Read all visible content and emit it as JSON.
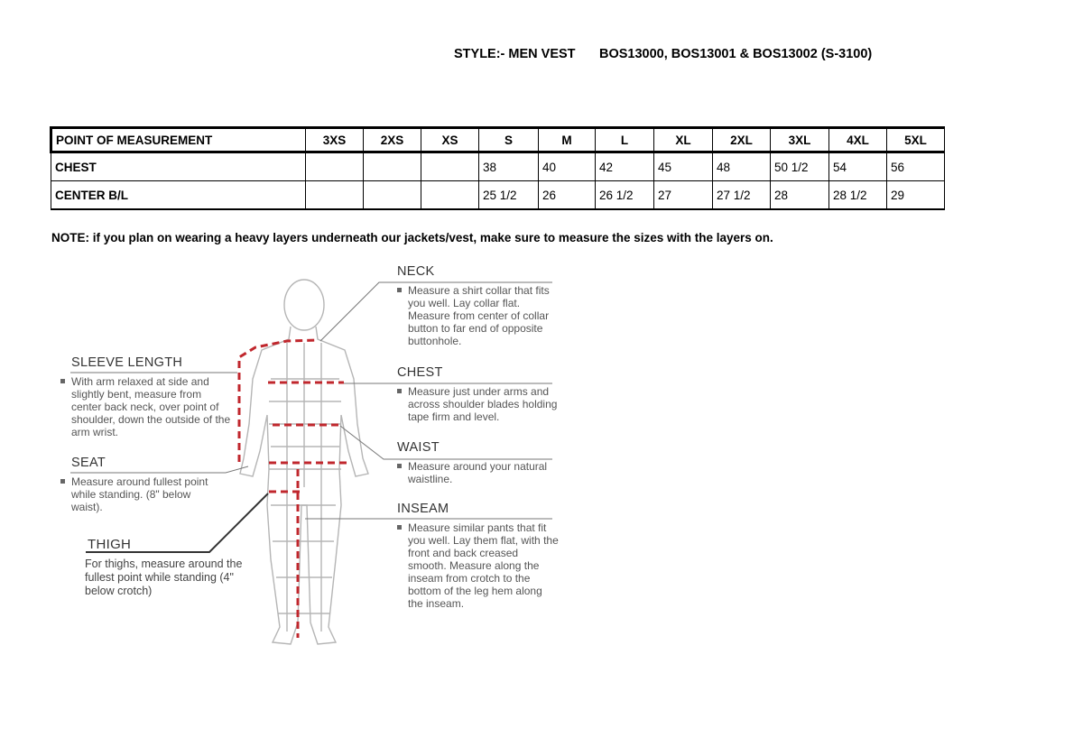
{
  "header": {
    "style": "STYLE:- MEN VEST",
    "codes": "BOS13000, BOS13001 & BOS13002 (S-3100)"
  },
  "table": {
    "columns": [
      "POINT OF MEASUREMENT",
      "3XS",
      "2XS",
      "XS",
      "S",
      "M",
      "L",
      "XL",
      "2XL",
      "3XL",
      "4XL",
      "5XL"
    ],
    "rows": [
      [
        "CHEST",
        "",
        "",
        "",
        "38",
        "40",
        "42",
        "45",
        "48",
        "50 1/2",
        "54",
        "56"
      ],
      [
        "CENTER B/L",
        "",
        "",
        "",
        "25 1/2",
        "26",
        "26 1/2",
        "27",
        "27 1/2",
        "28",
        "28 1/2",
        "29"
      ]
    ]
  },
  "note": "NOTE: if you plan on wearing a heavy layers underneath our jackets/vest, make sure to measure the sizes with the layers on.",
  "guide": {
    "neck": {
      "title": "NECK",
      "text": "Measure a shirt collar that fits you well. Lay collar flat. Measure from center of collar button to far end of opposite buttonhole."
    },
    "chest": {
      "title": "CHEST",
      "text": "Measure just under arms and across shoulder blades holding tape firm and level."
    },
    "waist": {
      "title": "WAIST",
      "text": "Measure around your natural waistline."
    },
    "inseam": {
      "title": "INSEAM",
      "text": "Measure similar pants that fit you well. Lay them flat, with the front and back creased smooth. Measure along the inseam from crotch to the bottom of the leg hem along the inseam."
    },
    "sleeve": {
      "title": "SLEEVE LENGTH",
      "text": "With arm relaxed at side and slightly bent, measure from center back neck, over point of shoulder, down the outside of the arm wrist."
    },
    "seat": {
      "title": "SEAT",
      "text": "Measure around fullest point while standing. (8\" below waist)."
    },
    "thigh": {
      "title": "THIGH",
      "text": "For thighs, measure around the fullest point while standing (4\" below crotch)"
    }
  },
  "colors": {
    "measure_line": "#c0272d"
  }
}
